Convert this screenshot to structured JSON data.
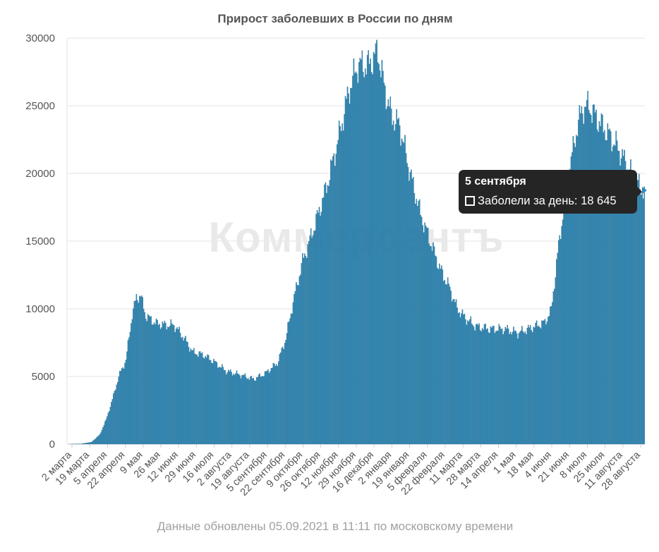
{
  "chart_data": {
    "type": "bar",
    "title": "Прирост заболевших в России по дням",
    "footnote": "Данные обновлены 05.09.2021 в 11:11 по московскому времени",
    "watermark": "Коммерсантъ",
    "ylim": [
      0,
      30000
    ],
    "y_ticks": [
      0,
      5000,
      10000,
      15000,
      20000,
      25000,
      30000
    ],
    "grid": true,
    "x_start_date": "2020-03-02",
    "x_end_date": "2021-09-05",
    "x_tick_labels": [
      "2 марта",
      "19 марта",
      "5 апреля",
      "22 апреля",
      "9 мая",
      "26 мая",
      "12 июня",
      "29 июня",
      "16 июля",
      "2 августа",
      "19 августа",
      "5 сентября",
      "22 сентября",
      "9 октября",
      "26 октября",
      "12 ноября",
      "29 ноября",
      "16 декабря",
      "2 января",
      "19 января",
      "5 февраля",
      "22 февраля",
      "11 марта",
      "28 марта",
      "14 апреля",
      "1 мая",
      "18 мая",
      "4 июня",
      "21 июня",
      "8 июля",
      "25 июля",
      "11 августа",
      "28 августа"
    ],
    "series": [
      {
        "name": "Заболели за день",
        "color": "#2f8ab8",
        "interpolated_daily": true,
        "points": [
          [
            "2020-03-02",
            0
          ],
          [
            "2020-03-15",
            20
          ],
          [
            "2020-03-25",
            150
          ],
          [
            "2020-04-02",
            700
          ],
          [
            "2020-04-08",
            1800
          ],
          [
            "2020-04-14",
            3300
          ],
          [
            "2020-04-20",
            5000
          ],
          [
            "2020-04-27",
            6200
          ],
          [
            "2020-05-03",
            9600
          ],
          [
            "2020-05-07",
            10800
          ],
          [
            "2020-05-11",
            11000
          ],
          [
            "2020-05-16",
            9500
          ],
          [
            "2020-05-26",
            8900
          ],
          [
            "2020-06-04",
            8800
          ],
          [
            "2020-06-12",
            8800
          ],
          [
            "2020-06-21",
            7900
          ],
          [
            "2020-06-30",
            6800
          ],
          [
            "2020-07-10",
            6600
          ],
          [
            "2020-07-20",
            6100
          ],
          [
            "2020-08-01",
            5400
          ],
          [
            "2020-08-15",
            5100
          ],
          [
            "2020-08-27",
            4800
          ],
          [
            "2020-09-07",
            5200
          ],
          [
            "2020-09-19",
            6000
          ],
          [
            "2020-09-27",
            7800
          ],
          [
            "2020-10-04",
            10500
          ],
          [
            "2020-10-13",
            13500
          ],
          [
            "2020-10-24",
            16000
          ],
          [
            "2020-11-05",
            19000
          ],
          [
            "2020-11-17",
            22800
          ],
          [
            "2020-11-27",
            26300
          ],
          [
            "2020-12-05",
            28000
          ],
          [
            "2020-12-15",
            28000
          ],
          [
            "2020-12-24",
            29000
          ],
          [
            "2020-12-30",
            26500
          ],
          [
            "2021-01-06",
            24300
          ],
          [
            "2021-01-14",
            23500
          ],
          [
            "2021-01-24",
            20000
          ],
          [
            "2021-02-03",
            17000
          ],
          [
            "2021-02-12",
            15000
          ],
          [
            "2021-02-22",
            12900
          ],
          [
            "2021-03-03",
            11500
          ],
          [
            "2021-03-10",
            10000
          ],
          [
            "2021-03-18",
            9300
          ],
          [
            "2021-03-28",
            8700
          ],
          [
            "2021-04-10",
            8500
          ],
          [
            "2021-04-25",
            8500
          ],
          [
            "2021-05-07",
            8200
          ],
          [
            "2021-05-20",
            8600
          ],
          [
            "2021-06-02",
            9000
          ],
          [
            "2021-06-08",
            9900
          ],
          [
            "2021-06-14",
            14000
          ],
          [
            "2021-06-20",
            17500
          ],
          [
            "2021-06-26",
            20500
          ],
          [
            "2021-07-03",
            23500
          ],
          [
            "2021-07-08",
            24800
          ],
          [
            "2021-07-14",
            25000
          ],
          [
            "2021-07-22",
            24000
          ],
          [
            "2021-08-01",
            23000
          ],
          [
            "2021-08-10",
            22000
          ],
          [
            "2021-08-20",
            20500
          ],
          [
            "2021-08-27",
            19500
          ],
          [
            "2021-09-05",
            18645
          ]
        ]
      }
    ]
  },
  "tooltip": {
    "date": "5 сентября",
    "series_label": "Заболели за день: 18 645"
  }
}
